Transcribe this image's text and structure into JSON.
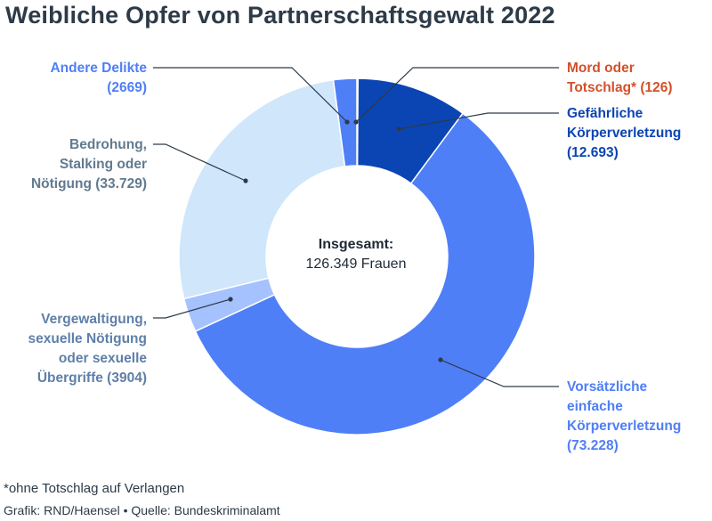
{
  "chart_data": {
    "type": "pie",
    "subtype": "donut",
    "title": "Weibliche Opfer von Partnerschaftsgewalt 2022",
    "total_label": "Insgesamt:",
    "total_value": "126.349 Frauen",
    "slices": [
      {
        "name": "Mord oder Totschlag*",
        "value": 126,
        "display": "(126)",
        "lines": [
          "Mord oder",
          "Totschlag* (126)"
        ],
        "color": "#1f4ea3",
        "label_color": "#d4502a"
      },
      {
        "name": "Gefährliche Körperverletzung",
        "value": 12693,
        "display": "(12.693)",
        "lines": [
          "Gefährliche",
          "Körperverletzung",
          "(12.693)"
        ],
        "color": "#0b45b3",
        "label_color": "#0b45b3"
      },
      {
        "name": "Vorsätzliche einfache Körperverletzung",
        "value": 73228,
        "display": "(73.228)",
        "lines": [
          "Vorsätzliche",
          "einfache",
          "Körperverletzung",
          "(73.228)"
        ],
        "color": "#4f7ff7",
        "label_color": "#4f7ff7"
      },
      {
        "name": "Vergewaltigung, sexuelle Nötigung oder sexuelle Übergriffe",
        "value": 3904,
        "display": "(3904)",
        "lines": [
          "Vergewaltigung,",
          "sexuelle Nötigung",
          "oder sexuelle",
          "Übergriffe (3904)"
        ],
        "color": "#a5c2ff",
        "label_color": "#5f7fa8"
      },
      {
        "name": "Bedrohung, Stalking oder Nötigung",
        "value": 33729,
        "display": "(33.729)",
        "lines": [
          "Bedrohung,",
          "Stalking oder",
          "Nötigung (33.729)"
        ],
        "color": "#cfe6fb",
        "label_color": "#617a8f"
      },
      {
        "name": "Andere Delikte",
        "value": 2669,
        "display": "(2669)",
        "lines": [
          "Andere Delikte",
          "(2669)"
        ],
        "color": "#4f7ff7",
        "label_color": "#4f7ff7"
      }
    ]
  },
  "footnote": "*ohne Totschlag auf Verlangen",
  "credit": "Grafik: RND/Haensel • Quelle: Bundeskriminalamt"
}
